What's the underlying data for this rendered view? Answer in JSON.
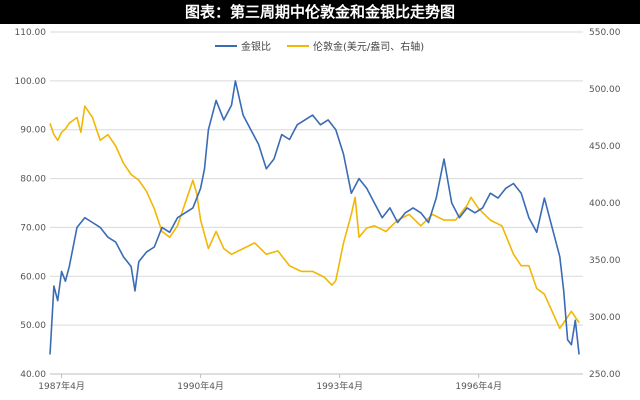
{
  "title": "图表：第三周期中伦敦金和金银比走势图",
  "chart_data": {
    "type": "line",
    "legend_position": "top-center",
    "grid": {
      "horizontal": true,
      "vertical": false
    },
    "x": {
      "range": [
        "1987-01",
        "1998-07"
      ],
      "tick_labels": [
        {
          "label": "1987年4月",
          "date": "1987-04"
        },
        {
          "label": "1990年4月",
          "date": "1990-04"
        },
        {
          "label": "1993年4月",
          "date": "1993-04"
        },
        {
          "label": "1996年4月",
          "date": "1996-04"
        }
      ]
    },
    "y_left": {
      "range": [
        40,
        110
      ],
      "ticks": [
        "40.00",
        "50.00",
        "60.00",
        "70.00",
        "80.00",
        "90.00",
        "100.00",
        "110.00"
      ]
    },
    "y_right": {
      "range": [
        250,
        550
      ],
      "ticks": [
        "250.00",
        "300.00",
        "350.00",
        "400.00",
        "450.00",
        "500.00",
        "550.00"
      ]
    },
    "series": [
      {
        "name": "金银比",
        "axis": "left",
        "color": "#3A6BB5",
        "points": [
          [
            "1987-01",
            44
          ],
          [
            "1987-02",
            58
          ],
          [
            "1987-03",
            55
          ],
          [
            "1987-04",
            61
          ],
          [
            "1987-05",
            59
          ],
          [
            "1987-06",
            62
          ],
          [
            "1987-08",
            70
          ],
          [
            "1987-10",
            72
          ],
          [
            "1987-12",
            71
          ],
          [
            "1988-02",
            70
          ],
          [
            "1988-04",
            68
          ],
          [
            "1988-06",
            67
          ],
          [
            "1988-08",
            64
          ],
          [
            "1988-10",
            62
          ],
          [
            "1988-11",
            57
          ],
          [
            "1988-12",
            63
          ],
          [
            "1989-02",
            65
          ],
          [
            "1989-04",
            66
          ],
          [
            "1989-06",
            70
          ],
          [
            "1989-08",
            69
          ],
          [
            "1989-10",
            72
          ],
          [
            "1989-12",
            73
          ],
          [
            "1990-02",
            74
          ],
          [
            "1990-04",
            78
          ],
          [
            "1990-05",
            82
          ],
          [
            "1990-06",
            90
          ],
          [
            "1990-08",
            96
          ],
          [
            "1990-10",
            92
          ],
          [
            "1990-12",
            95
          ],
          [
            "1991-01",
            100
          ],
          [
            "1991-03",
            93
          ],
          [
            "1991-05",
            90
          ],
          [
            "1991-07",
            87
          ],
          [
            "1991-09",
            82
          ],
          [
            "1991-11",
            84
          ],
          [
            "1992-01",
            89
          ],
          [
            "1992-03",
            88
          ],
          [
            "1992-05",
            91
          ],
          [
            "1992-07",
            92
          ],
          [
            "1992-09",
            93
          ],
          [
            "1992-11",
            91
          ],
          [
            "1993-01",
            92
          ],
          [
            "1993-03",
            90
          ],
          [
            "1993-05",
            85
          ],
          [
            "1993-07",
            77
          ],
          [
            "1993-09",
            80
          ],
          [
            "1993-11",
            78
          ],
          [
            "1994-01",
            75
          ],
          [
            "1994-03",
            72
          ],
          [
            "1994-05",
            74
          ],
          [
            "1994-07",
            71
          ],
          [
            "1994-09",
            73
          ],
          [
            "1994-11",
            74
          ],
          [
            "1995-01",
            73
          ],
          [
            "1995-03",
            71
          ],
          [
            "1995-05",
            76
          ],
          [
            "1995-07",
            84
          ],
          [
            "1995-09",
            75
          ],
          [
            "1995-11",
            72
          ],
          [
            "1996-01",
            74
          ],
          [
            "1996-03",
            73
          ],
          [
            "1996-05",
            74
          ],
          [
            "1996-07",
            77
          ],
          [
            "1996-09",
            76
          ],
          [
            "1996-11",
            78
          ],
          [
            "1997-01",
            79
          ],
          [
            "1997-03",
            77
          ],
          [
            "1997-05",
            72
          ],
          [
            "1997-07",
            69
          ],
          [
            "1997-09",
            76
          ],
          [
            "1997-11",
            70
          ],
          [
            "1998-01",
            64
          ],
          [
            "1998-02",
            57
          ],
          [
            "1998-03",
            47
          ],
          [
            "1998-04",
            46
          ],
          [
            "1998-05",
            51
          ],
          [
            "1998-06",
            44
          ]
        ]
      },
      {
        "name": "伦敦金(美元/盎司、右轴)",
        "axis": "right",
        "color": "#F2B705",
        "points": [
          [
            "1987-01",
            470
          ],
          [
            "1987-02",
            460
          ],
          [
            "1987-03",
            455
          ],
          [
            "1987-04",
            462
          ],
          [
            "1987-05",
            465
          ],
          [
            "1987-06",
            470
          ],
          [
            "1987-08",
            475
          ],
          [
            "1987-09",
            462
          ],
          [
            "1987-10",
            485
          ],
          [
            "1987-12",
            475
          ],
          [
            "1988-02",
            455
          ],
          [
            "1988-04",
            460
          ],
          [
            "1988-06",
            450
          ],
          [
            "1988-08",
            435
          ],
          [
            "1988-10",
            425
          ],
          [
            "1988-12",
            420
          ],
          [
            "1989-02",
            410
          ],
          [
            "1989-04",
            395
          ],
          [
            "1989-06",
            375
          ],
          [
            "1989-08",
            370
          ],
          [
            "1989-10",
            380
          ],
          [
            "1989-12",
            400
          ],
          [
            "1990-02",
            420
          ],
          [
            "1990-03",
            408
          ],
          [
            "1990-04",
            385
          ],
          [
            "1990-06",
            360
          ],
          [
            "1990-08",
            375
          ],
          [
            "1990-10",
            360
          ],
          [
            "1990-12",
            355
          ],
          [
            "1991-03",
            360
          ],
          [
            "1991-06",
            365
          ],
          [
            "1991-09",
            355
          ],
          [
            "1991-12",
            358
          ],
          [
            "1992-03",
            345
          ],
          [
            "1992-06",
            340
          ],
          [
            "1992-09",
            340
          ],
          [
            "1992-12",
            335
          ],
          [
            "1993-02",
            328
          ],
          [
            "1993-03",
            332
          ],
          [
            "1993-05",
            365
          ],
          [
            "1993-07",
            390
          ],
          [
            "1993-08",
            405
          ],
          [
            "1993-09",
            370
          ],
          [
            "1993-11",
            378
          ],
          [
            "1994-01",
            380
          ],
          [
            "1994-04",
            375
          ],
          [
            "1994-07",
            385
          ],
          [
            "1994-10",
            390
          ],
          [
            "1995-01",
            380
          ],
          [
            "1995-04",
            390
          ],
          [
            "1995-07",
            385
          ],
          [
            "1995-10",
            385
          ],
          [
            "1996-01",
            398
          ],
          [
            "1996-02",
            405
          ],
          [
            "1996-04",
            395
          ],
          [
            "1996-07",
            385
          ],
          [
            "1996-10",
            380
          ],
          [
            "1997-01",
            355
          ],
          [
            "1997-03",
            345
          ],
          [
            "1997-05",
            345
          ],
          [
            "1997-07",
            325
          ],
          [
            "1997-09",
            320
          ],
          [
            "1997-11",
            305
          ],
          [
            "1998-01",
            290
          ],
          [
            "1998-02",
            295
          ],
          [
            "1998-04",
            305
          ],
          [
            "1998-06",
            295
          ]
        ]
      }
    ]
  }
}
